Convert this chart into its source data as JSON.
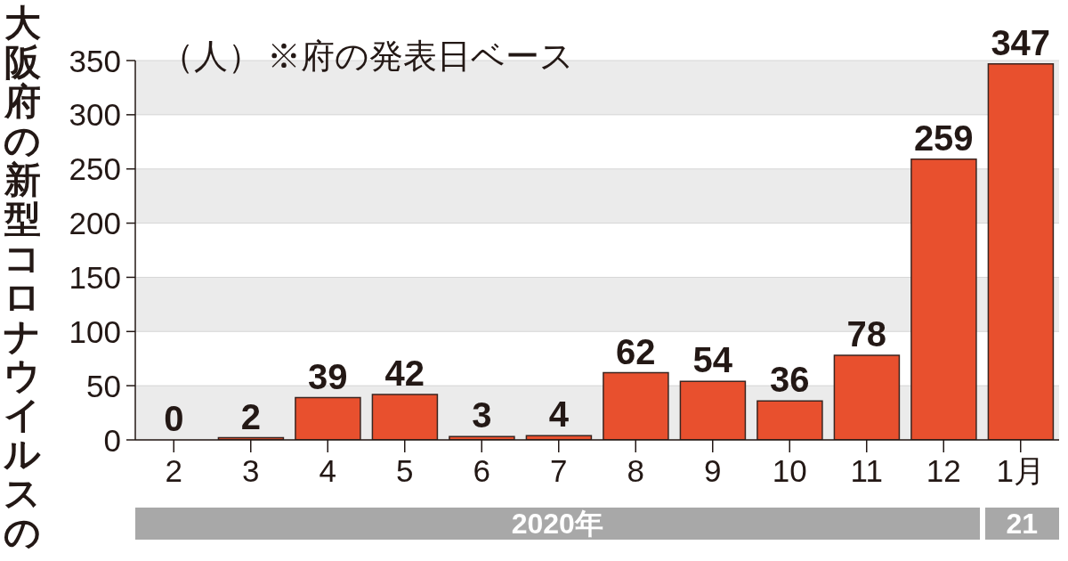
{
  "chart_data": {
    "type": "bar",
    "title": "大阪府の新型コロナウイルスの",
    "ylabel": "（人）",
    "categories": [
      "2",
      "3",
      "4",
      "5",
      "6",
      "7",
      "8",
      "9",
      "10",
      "11",
      "12",
      "1月"
    ],
    "values": [
      0,
      2,
      39,
      42,
      3,
      4,
      62,
      54,
      36,
      78,
      259,
      347
    ],
    "color": "#e8502e",
    "ylim": [
      0,
      350
    ],
    "yticks": [
      0,
      50,
      100,
      150,
      200,
      250,
      300,
      350
    ],
    "grid": "y",
    "data_labels": true,
    "annotations": [
      "※府の発表日ベース",
      "2020年",
      "21"
    ]
  }
}
